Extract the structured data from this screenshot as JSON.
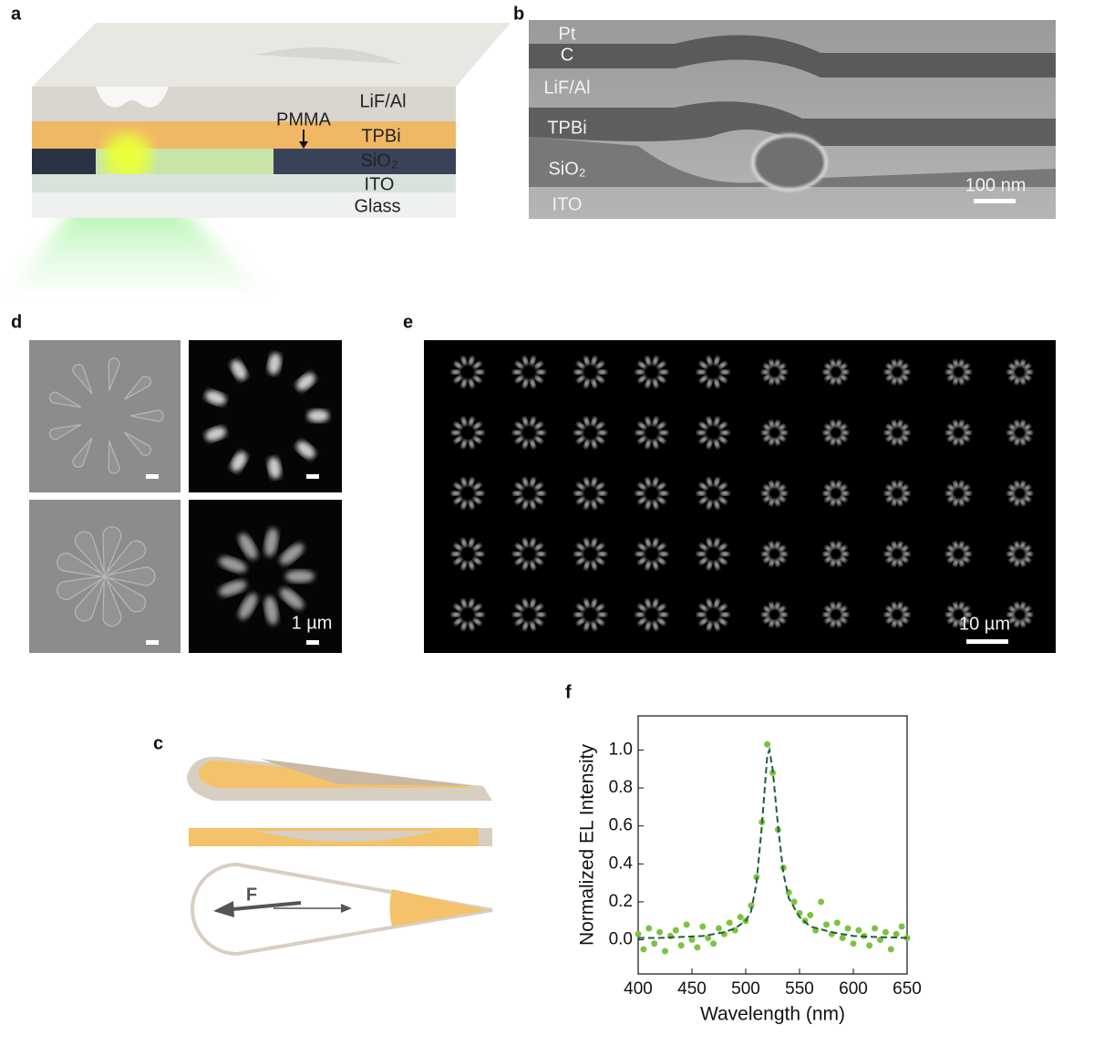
{
  "panels": {
    "a": {
      "label": "a",
      "layers": [
        "LiF/Al",
        "PMMA",
        "TPBi",
        "SiO₂",
        "ITO",
        "Glass"
      ]
    },
    "b": {
      "label": "b",
      "layers": [
        "Pt",
        "C",
        "LiF/Al",
        "TPBi",
        "SiO₂",
        "ITO"
      ],
      "scale": "100 nm"
    },
    "d": {
      "label": "d",
      "scale": "1 µm"
    },
    "e": {
      "label": "e",
      "scale": "10 µm"
    },
    "c": {
      "label": "c",
      "force": "F"
    },
    "f": {
      "label": "f"
    }
  },
  "chart_data": {
    "type": "scatter",
    "x_label": "Wavelength (nm)",
    "y_label": "Normalized EL Intensity",
    "xlim": [
      400,
      650
    ],
    "xticks": [
      400,
      450,
      500,
      550,
      600,
      650
    ],
    "ylim": [
      -0.18,
      1.18
    ],
    "yticks": [
      {
        "value": 0,
        "label": "0.0"
      },
      0.2,
      0.4,
      0.6,
      0.8,
      {
        "value": 1,
        "label": "1.0"
      }
    ],
    "series": [
      {
        "type": "scatter",
        "color": "#7dc242",
        "x": [
          400,
          405,
          410,
          415,
          420,
          425,
          430,
          435,
          440,
          445,
          450,
          455,
          460,
          465,
          470,
          475,
          480,
          485,
          490,
          495,
          500,
          505,
          510,
          515,
          520,
          525,
          530,
          535,
          540,
          545,
          550,
          555,
          560,
          565,
          570,
          575,
          580,
          585,
          590,
          595,
          600,
          605,
          610,
          615,
          620,
          625,
          630,
          635,
          640,
          645,
          650
        ],
        "values": [
          0.03,
          -0.05,
          0.06,
          -0.02,
          0.04,
          -0.06,
          0.02,
          0.05,
          -0.03,
          0.08,
          0.0,
          -0.04,
          0.07,
          0.01,
          -0.02,
          0.06,
          0.03,
          0.09,
          0.05,
          0.12,
          0.1,
          0.18,
          0.33,
          0.62,
          1.03,
          0.88,
          0.58,
          0.38,
          0.25,
          0.2,
          0.14,
          0.1,
          0.13,
          0.05,
          0.2,
          0.08,
          0.03,
          0.09,
          0.01,
          0.06,
          -0.02,
          0.05,
          0.02,
          -0.03,
          0.06,
          0.0,
          0.04,
          -0.05,
          0.03,
          0.07,
          0.01
        ]
      },
      {
        "type": "line",
        "color": "#1d5e3a",
        "dashed": true,
        "x": [
          400,
          420,
          440,
          460,
          480,
          490,
          500,
          505,
          510,
          515,
          520,
          522,
          525,
          530,
          535,
          540,
          550,
          560,
          580,
          600,
          620,
          650
        ],
        "values": [
          0.01,
          0.01,
          0.015,
          0.02,
          0.04,
          0.06,
          0.1,
          0.15,
          0.3,
          0.6,
          0.97,
          1.0,
          0.9,
          0.6,
          0.35,
          0.22,
          0.12,
          0.07,
          0.04,
          0.02,
          0.015,
          0.01
        ]
      }
    ]
  }
}
